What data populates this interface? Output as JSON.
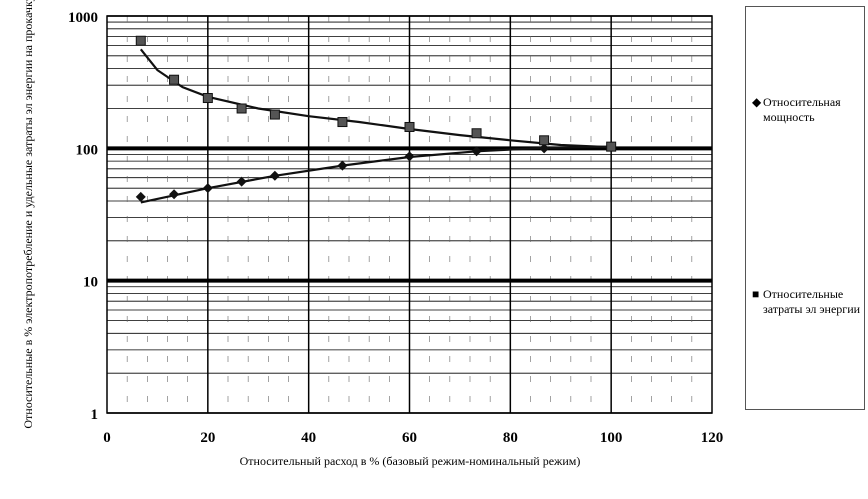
{
  "chart_data": {
    "type": "scatter",
    "title": "",
    "xlabel": "Относительный расход  в % (базовый режим-номинальный режим)",
    "ylabel": "Относительные в % электропотребление и удельные затраты эл энергии на прокачку",
    "xlim": [
      0,
      120
    ],
    "ylim": [
      1,
      1000
    ],
    "yscale": "log",
    "grid": true,
    "x_ticks": [
      "0",
      "20",
      "40",
      "60",
      "80",
      "100",
      "120"
    ],
    "y_ticks": [
      "1",
      "10",
      "100",
      "1000"
    ],
    "legend_position": "right",
    "series": [
      {
        "name": "Относительная мощность",
        "marker": "diamond",
        "x": [
          6.7,
          13.3,
          20,
          26.7,
          33.3,
          46.7,
          60,
          73.3,
          86.7,
          100
        ],
        "y": [
          43,
          45,
          50,
          56,
          62,
          74,
          87,
          95,
          100,
          103
        ]
      },
      {
        "name": "Относительные затраты  эл энергии",
        "marker": "square",
        "x": [
          6.7,
          13.3,
          20,
          26.7,
          33.3,
          46.7,
          60,
          73.3,
          86.7,
          100
        ],
        "y": [
          650,
          330,
          240,
          200,
          180,
          158,
          145,
          130,
          115,
          103
        ]
      }
    ],
    "trendlines": [
      {
        "series": 0,
        "x": [
          6.7,
          20,
          33.3,
          46.7,
          60,
          73.3,
          86.7,
          100
        ],
        "y": [
          39,
          50,
          62,
          74,
          86,
          95,
          101,
          103
        ]
      },
      {
        "series": 1,
        "x": [
          6.7,
          10,
          15,
          20,
          30,
          40,
          50,
          60,
          70,
          80,
          90,
          100
        ],
        "y": [
          560,
          390,
          290,
          245,
          200,
          175,
          158,
          140,
          126,
          115,
          106,
          102
        ]
      }
    ],
    "colors": {
      "axis": "#000000",
      "grid": "#000000",
      "series": "#111111"
    }
  }
}
